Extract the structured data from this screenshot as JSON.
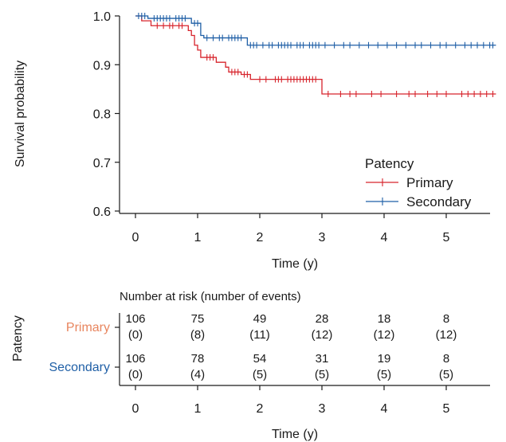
{
  "chart_data": [
    {
      "type": "line",
      "subtype": "kaplan-meier",
      "ylabel": "Survival probability",
      "xlabel": "Time (y)",
      "xlim": [
        0,
        5.8
      ],
      "ylim": [
        0.6,
        1.0
      ],
      "xticks": [
        0,
        1,
        2,
        3,
        4,
        5
      ],
      "yticks": [
        0.6,
        0.7,
        0.8,
        0.9,
        1.0
      ],
      "ytick_labels": [
        "0.6",
        "0.7",
        "0.8",
        "0.9",
        "1.0"
      ],
      "legend": {
        "title": "Patency",
        "position": "bottom-right"
      },
      "series": [
        {
          "name": "Primary",
          "color": "#d7242c",
          "steps": [
            [
              0,
              1.0
            ],
            [
              0.1,
              0.99
            ],
            [
              0.25,
              0.98
            ],
            [
              0.85,
              0.97
            ],
            [
              0.9,
              0.96
            ],
            [
              0.95,
              0.94
            ],
            [
              1.0,
              0.93
            ],
            [
              1.05,
              0.915
            ],
            [
              1.3,
              0.905
            ],
            [
              1.45,
              0.895
            ],
            [
              1.5,
              0.885
            ],
            [
              1.7,
              0.88
            ],
            [
              1.85,
              0.87
            ],
            [
              3.0,
              0.84
            ],
            [
              5.8,
              0.84
            ]
          ],
          "censor_times": [
            0.35,
            0.45,
            0.55,
            0.6,
            0.7,
            0.75,
            1.15,
            1.2,
            1.25,
            1.55,
            1.6,
            1.65,
            1.75,
            1.8,
            2.0,
            2.1,
            2.25,
            2.3,
            2.35,
            2.45,
            2.5,
            2.55,
            2.6,
            2.65,
            2.7,
            2.75,
            2.8,
            2.85,
            2.9,
            3.1,
            3.3,
            3.45,
            3.55,
            3.8,
            3.95,
            4.2,
            4.4,
            4.5,
            4.7,
            4.85,
            5.0,
            5.25,
            5.35,
            5.45,
            5.55,
            5.65,
            5.75
          ]
        },
        {
          "name": "Secondary",
          "color": "#1f5fa6",
          "steps": [
            [
              0,
              1.0
            ],
            [
              0.2,
              0.995
            ],
            [
              0.9,
              0.985
            ],
            [
              1.05,
              0.96
            ],
            [
              1.1,
              0.955
            ],
            [
              1.8,
              0.94
            ],
            [
              5.8,
              0.94
            ]
          ],
          "censor_times": [
            0.05,
            0.1,
            0.15,
            0.3,
            0.35,
            0.4,
            0.45,
            0.5,
            0.55,
            0.65,
            0.7,
            0.75,
            0.8,
            0.95,
            1.0,
            1.15,
            1.25,
            1.35,
            1.4,
            1.5,
            1.55,
            1.6,
            1.65,
            1.7,
            1.85,
            1.9,
            1.95,
            2.05,
            2.15,
            2.2,
            2.3,
            2.35,
            2.4,
            2.45,
            2.5,
            2.6,
            2.65,
            2.7,
            2.8,
            2.85,
            2.9,
            2.95,
            3.05,
            3.2,
            3.35,
            3.45,
            3.6,
            3.75,
            3.9,
            4.05,
            4.2,
            4.35,
            4.5,
            4.6,
            4.75,
            4.9,
            5.0,
            5.15,
            5.3,
            5.4,
            5.5,
            5.6,
            5.7,
            5.75
          ]
        }
      ]
    },
    {
      "type": "table",
      "title": "Number at risk (number of events)",
      "ylabel": "Patency",
      "xlabel": "Time (y)",
      "xlim": [
        0,
        5.8
      ],
      "xticks": [
        0,
        1,
        2,
        3,
        4,
        5
      ],
      "rows": [
        {
          "name": "Primary",
          "color": "#e8855e",
          "at_risk": [
            "106",
            "75",
            "49",
            "28",
            "18",
            "8"
          ],
          "events": [
            "(0)",
            "(8)",
            "(11)",
            "(12)",
            "(12)",
            "(12)"
          ]
        },
        {
          "name": "Secondary",
          "color": "#1f5fa6",
          "at_risk": [
            "106",
            "78",
            "54",
            "31",
            "19",
            "8"
          ],
          "events": [
            "(0)",
            "(4)",
            "(5)",
            "(5)",
            "(5)",
            "(5)"
          ]
        }
      ]
    }
  ]
}
